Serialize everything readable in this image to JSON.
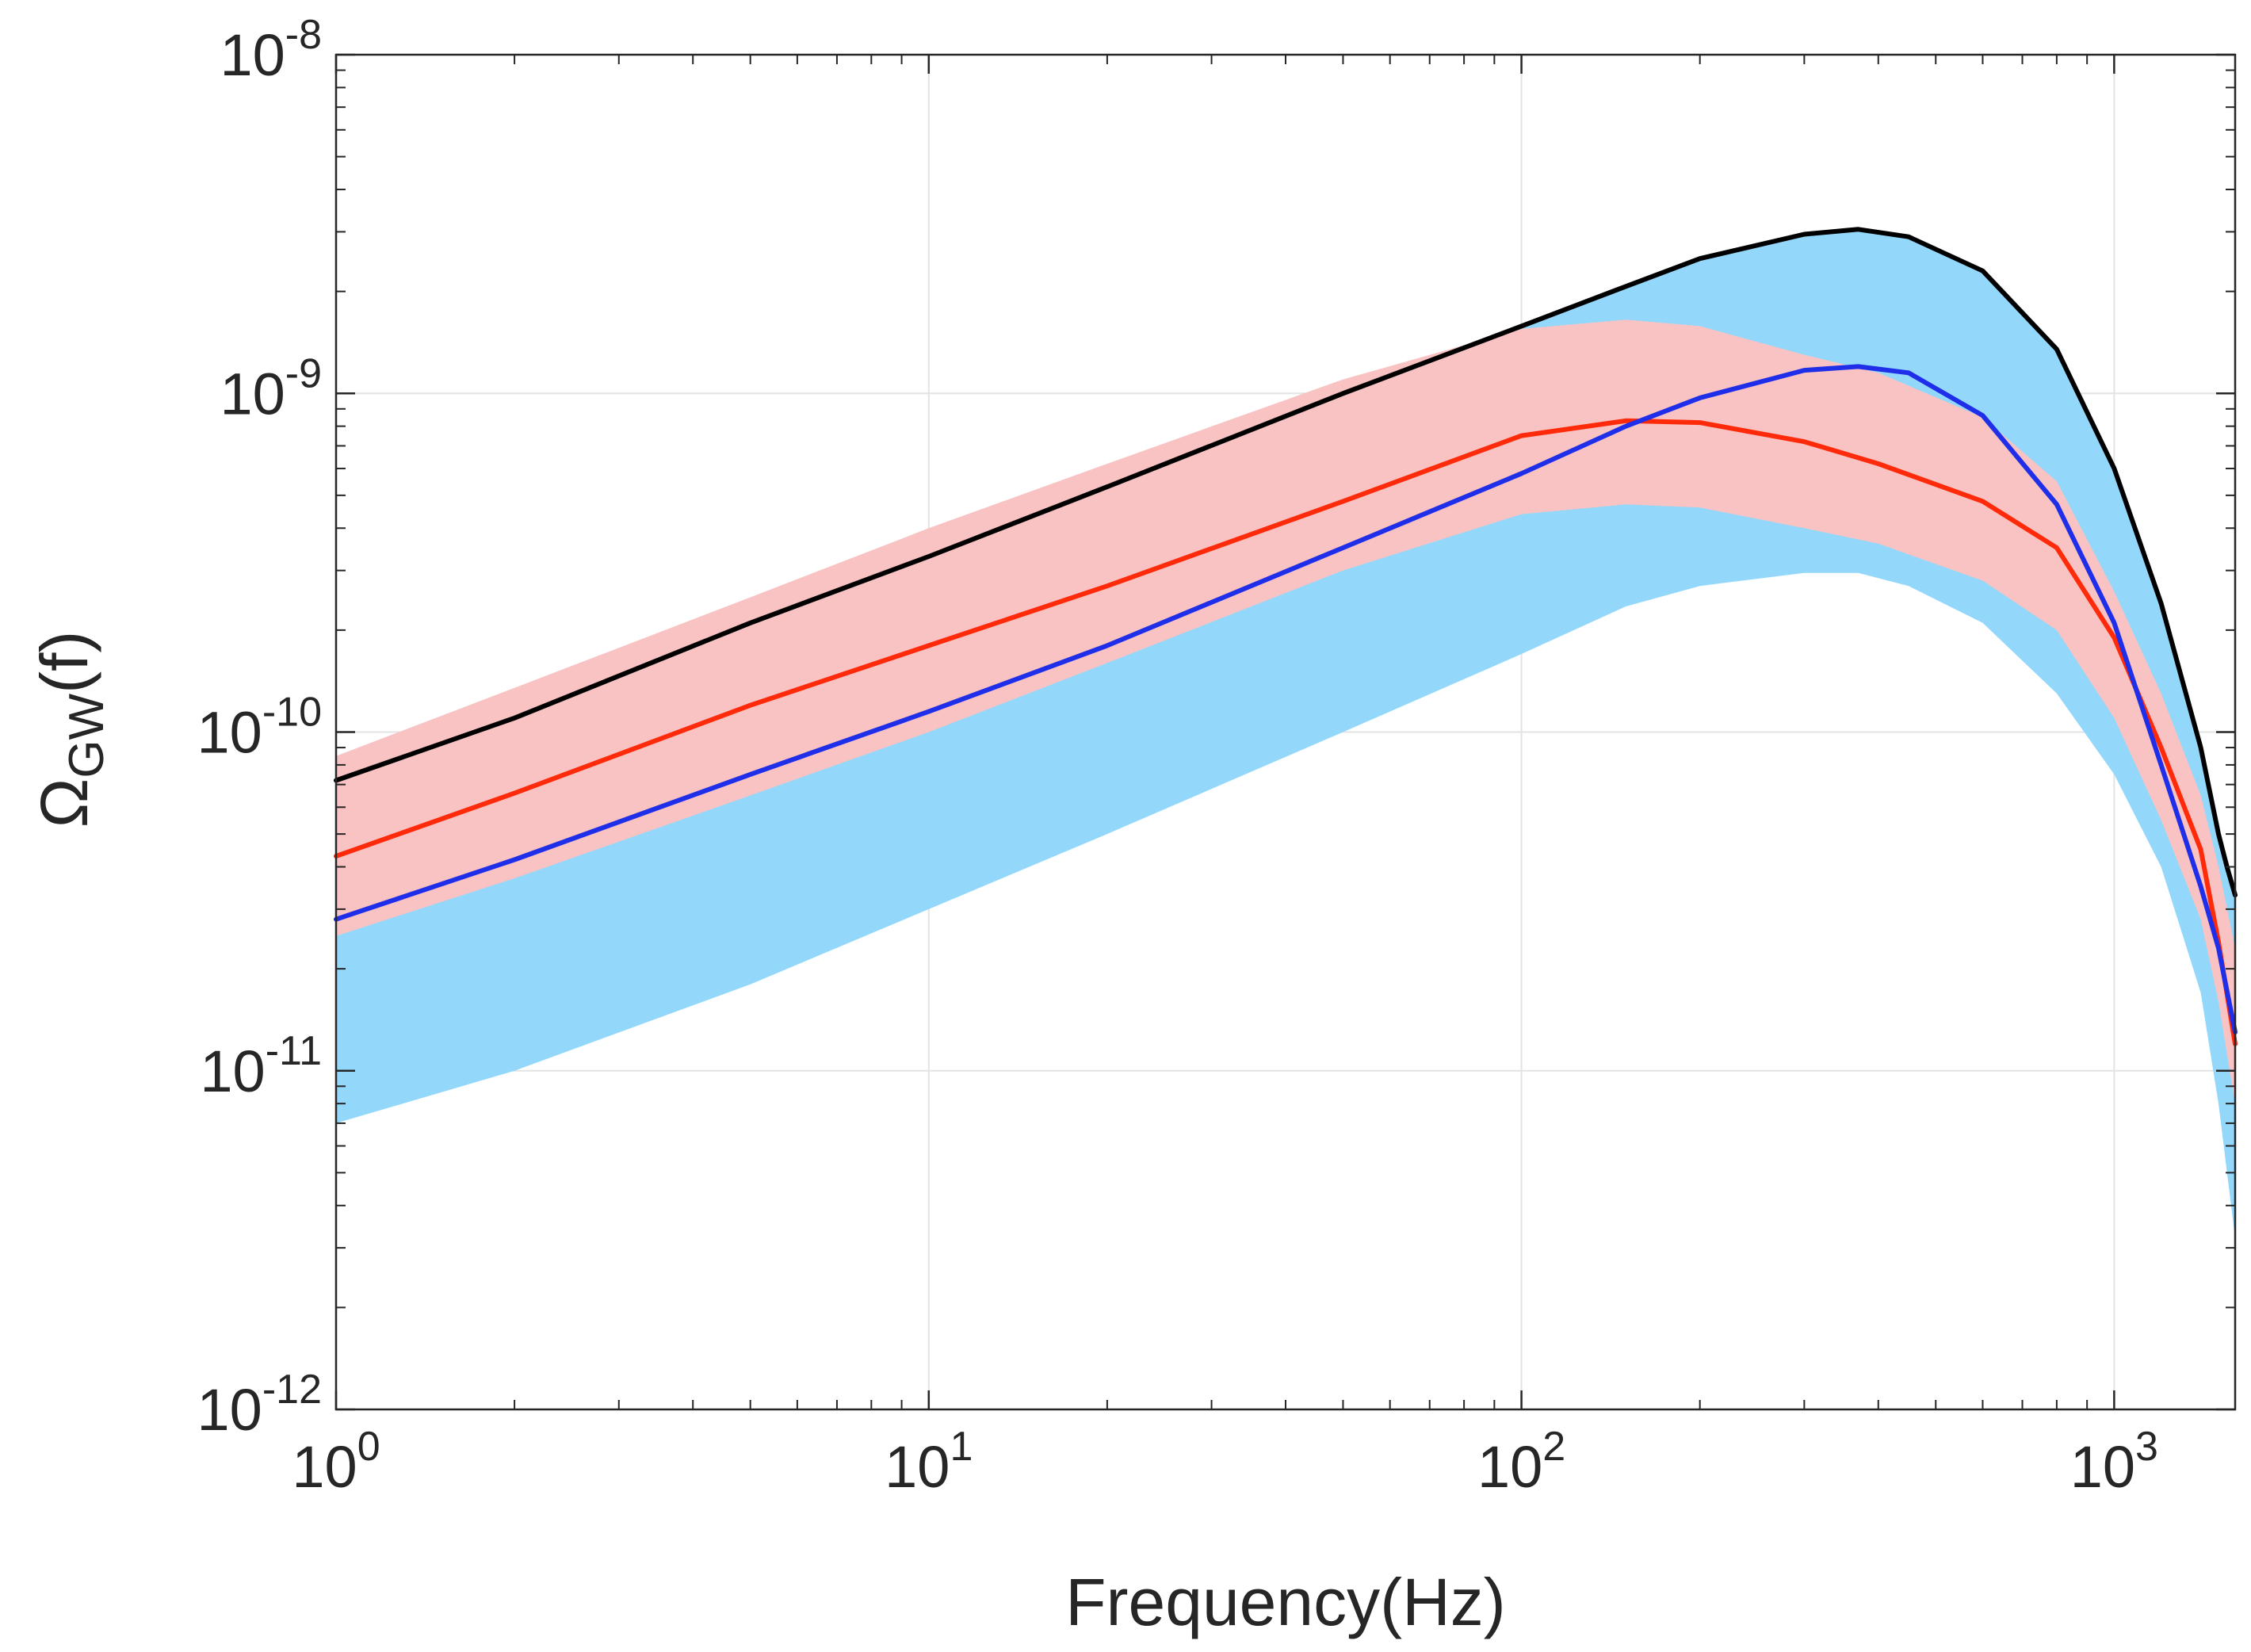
{
  "chart_data": {
    "type": "line",
    "title": "",
    "xlabel": "Frequency(Hz)",
    "ylabel": {
      "base": "Ω",
      "sub": "GW",
      "suffix": "(f)"
    },
    "x_scale": "log",
    "y_scale": "log",
    "xlim": [
      1,
      1600
    ],
    "ylim": [
      1e-12,
      1e-08
    ],
    "grid": true,
    "x_ticks": [
      {
        "value": 1,
        "base": "10",
        "exp": "0"
      },
      {
        "value": 10,
        "base": "10",
        "exp": "1"
      },
      {
        "value": 100,
        "base": "10",
        "exp": "2"
      },
      {
        "value": 1000,
        "base": "10",
        "exp": "3"
      }
    ],
    "y_ticks": [
      {
        "value": 1e-12,
        "base": "10",
        "exp": "-12"
      },
      {
        "value": 1e-11,
        "base": "10",
        "exp": "-11"
      },
      {
        "value": 1e-10,
        "base": "10",
        "exp": "-10"
      },
      {
        "value": 1e-09,
        "base": "10",
        "exp": "-9"
      },
      {
        "value": 1e-08,
        "base": "10",
        "exp": "-8"
      }
    ],
    "bands": [
      {
        "name": "blue-band",
        "color": "#93d8fb",
        "x": [
          1,
          2,
          5,
          10,
          20,
          50,
          100,
          150,
          200,
          300,
          370,
          450,
          600,
          800,
          1000,
          1200,
          1400,
          1500,
          1600
        ],
        "upper": [
          7.2e-11,
          1.1e-10,
          2.1e-10,
          3.3e-10,
          5.3e-10,
          1e-09,
          1.58e-09,
          2.07e-09,
          2.5e-09,
          2.95e-09,
          3.05e-09,
          2.9e-09,
          2.3e-09,
          1.35e-09,
          6e-10,
          2.4e-10,
          9e-11,
          5e-11,
          3.3e-11
        ],
        "lower": [
          7e-12,
          1e-11,
          1.8e-11,
          3e-11,
          5e-11,
          1e-10,
          1.7e-10,
          2.35e-10,
          2.7e-10,
          2.95e-10,
          2.95e-10,
          2.7e-10,
          2.1e-10,
          1.3e-10,
          7.5e-11,
          4e-11,
          1.7e-11,
          8e-12,
          3.2e-12
        ]
      },
      {
        "name": "red-band",
        "color": "#f9c3c3",
        "x": [
          1,
          2,
          5,
          10,
          20,
          50,
          100,
          150,
          200,
          300,
          400,
          600,
          800,
          1000,
          1200,
          1400,
          1500,
          1600
        ],
        "upper": [
          8.5e-11,
          1.35e-10,
          2.5e-10,
          4e-10,
          6.2e-10,
          1.1e-09,
          1.55e-09,
          1.65e-09,
          1.58e-09,
          1.3e-09,
          1.15e-09,
          8.5e-10,
          5.5e-10,
          2.6e-10,
          1.3e-10,
          6.5e-11,
          4e-11,
          2.3e-11
        ],
        "lower": [
          2.5e-11,
          3.7e-11,
          6.5e-11,
          1e-10,
          1.6e-10,
          3e-10,
          4.4e-10,
          4.7e-10,
          4.6e-10,
          4e-10,
          3.6e-10,
          2.8e-10,
          2e-10,
          1.1e-10,
          5.5e-11,
          2.8e-11,
          1.6e-11,
          8e-12
        ]
      }
    ],
    "series": [
      {
        "name": "black-line",
        "color": "#000000",
        "x": [
          1,
          2,
          5,
          10,
          20,
          50,
          100,
          150,
          200,
          300,
          370,
          450,
          600,
          800,
          1000,
          1200,
          1400,
          1500,
          1550,
          1600
        ],
        "y": [
          7.2e-11,
          1.1e-10,
          2.1e-10,
          3.3e-10,
          5.3e-10,
          1e-09,
          1.58e-09,
          2.07e-09,
          2.5e-09,
          2.95e-09,
          3.05e-09,
          2.9e-09,
          2.3e-09,
          1.35e-09,
          6e-10,
          2.4e-10,
          9e-11,
          5e-11,
          4e-11,
          3.3e-11
        ]
      },
      {
        "name": "red-line",
        "color": "#ff2a0a",
        "x": [
          1,
          2,
          5,
          10,
          20,
          50,
          100,
          150,
          200,
          300,
          400,
          600,
          800,
          1000,
          1200,
          1400,
          1500,
          1600
        ],
        "y": [
          4.3e-11,
          6.6e-11,
          1.2e-10,
          1.8e-10,
          2.7e-10,
          4.8e-10,
          7.5e-10,
          8.3e-10,
          8.2e-10,
          7.2e-10,
          6.2e-10,
          4.8e-10,
          3.5e-10,
          1.9e-10,
          9e-11,
          4.5e-11,
          2.4e-11,
          1.2e-11
        ]
      },
      {
        "name": "blue-line",
        "color": "#1f2ee8",
        "x": [
          1,
          2,
          5,
          10,
          20,
          50,
          100,
          150,
          200,
          300,
          370,
          450,
          600,
          800,
          1000,
          1200,
          1400,
          1500,
          1600
        ],
        "y": [
          2.8e-11,
          4.2e-11,
          7.5e-11,
          1.15e-10,
          1.8e-10,
          3.5e-10,
          5.8e-10,
          8e-10,
          9.7e-10,
          1.17e-09,
          1.2e-09,
          1.15e-09,
          8.6e-10,
          4.7e-10,
          2.1e-10,
          8e-11,
          3.5e-11,
          2.3e-11,
          1.3e-11
        ]
      }
    ]
  }
}
